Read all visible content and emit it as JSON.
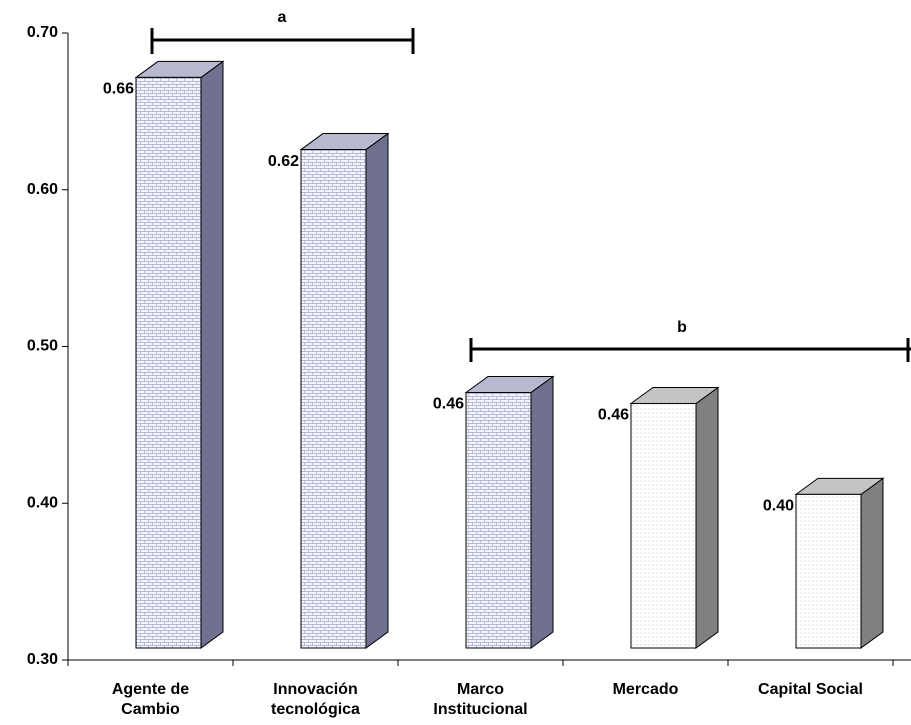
{
  "chart_data": {
    "type": "bar3d",
    "categories": [
      "Agente de Cambio",
      "Innovación tecnológica",
      "Marco Institucional",
      "Mercado",
      "Capital Social"
    ],
    "values": [
      0.664,
      0.618,
      0.463,
      0.456,
      0.398
    ],
    "value_labels": [
      "0.66",
      "0.62",
      "0.46",
      "0.46",
      "0.40"
    ],
    "ylim": [
      0.3,
      0.7
    ],
    "yticks": [
      {
        "value": 0.3,
        "label": "0.30"
      },
      {
        "value": 0.4,
        "label": "0.40"
      },
      {
        "value": 0.5,
        "label": "0.50"
      },
      {
        "value": 0.6,
        "label": "0.60"
      },
      {
        "value": 0.7,
        "label": "0.70"
      }
    ],
    "annotations": [
      "a",
      "b"
    ]
  }
}
